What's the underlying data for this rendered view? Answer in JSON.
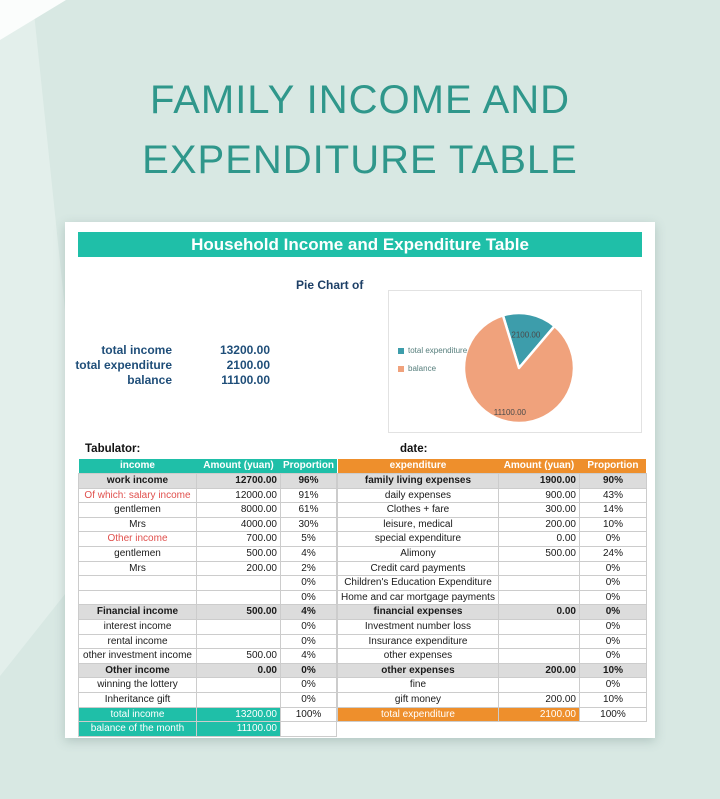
{
  "page_title": {
    "line1": "FAMILY INCOME AND",
    "line2": "EXPENDITURE TABLE"
  },
  "card": {
    "header": "Household Income and Expenditure Table",
    "chart_caption": "Pie Chart of",
    "tabulator_label": "Tabulator:",
    "date_label": "date:",
    "summary": {
      "rows": [
        {
          "label": "total income",
          "value": "13200.00"
        },
        {
          "label": "total expenditure",
          "value": "2100.00"
        },
        {
          "label": "balance",
          "value": "11100.00"
        }
      ]
    }
  },
  "chart_data": {
    "type": "pie",
    "title": "Pie Chart of",
    "legend_position": "left",
    "start_angle_deg": -17,
    "slices": [
      {
        "label": "total expenditure",
        "value": 2100,
        "data_label": "2100.00",
        "color": "#3d9dab",
        "label_r": 0.62
      },
      {
        "label": "balance",
        "value": 11100,
        "data_label": "11100.00",
        "color": "#f0a27c",
        "label_r": 0.82
      }
    ]
  },
  "tables": {
    "income": {
      "headers": [
        "income",
        "Amount (yuan)",
        "Proportion"
      ],
      "rows": [
        {
          "label": "work income",
          "amount": "12700.00",
          "prop": "96%",
          "style": "bold"
        },
        {
          "label": "Of which: salary income",
          "amount": "12000.00",
          "prop": "91%",
          "style": "red"
        },
        {
          "label": "gentlemen",
          "amount": "8000.00",
          "prop": "61%",
          "style": "normal"
        },
        {
          "label": "Mrs",
          "amount": "4000.00",
          "prop": "30%",
          "style": "normal"
        },
        {
          "label": "Other income",
          "amount": "700.00",
          "prop": "5%",
          "style": "red"
        },
        {
          "label": "gentlemen",
          "amount": "500.00",
          "prop": "4%",
          "style": "normal"
        },
        {
          "label": "Mrs",
          "amount": "200.00",
          "prop": "2%",
          "style": "normal"
        },
        {
          "label": "",
          "amount": "",
          "prop": "0%",
          "style": "normal"
        },
        {
          "label": "",
          "amount": "",
          "prop": "0%",
          "style": "normal"
        },
        {
          "label": "Financial income",
          "amount": "500.00",
          "prop": "4%",
          "style": "bold"
        },
        {
          "label": "interest income",
          "amount": "",
          "prop": "0%",
          "style": "normal"
        },
        {
          "label": "rental income",
          "amount": "",
          "prop": "0%",
          "style": "normal"
        },
        {
          "label": "other investment income",
          "amount": "500.00",
          "prop": "4%",
          "style": "normal"
        },
        {
          "label": "Other income",
          "amount": "0.00",
          "prop": "0%",
          "style": "bold"
        },
        {
          "label": "winning the lottery",
          "amount": "",
          "prop": "0%",
          "style": "normal"
        },
        {
          "label": "Inheritance gift",
          "amount": "",
          "prop": "0%",
          "style": "normal"
        },
        {
          "label": "total income",
          "amount": "13200.00",
          "prop": "100%",
          "style": "total"
        },
        {
          "label": "balance of the month",
          "amount": "11100.00",
          "prop": "",
          "style": "total"
        }
      ]
    },
    "expenditure": {
      "headers": [
        "expenditure",
        "Amount (yuan)",
        "Proportion"
      ],
      "rows": [
        {
          "label": "family living expenses",
          "amount": "1900.00",
          "prop": "90%",
          "style": "bold"
        },
        {
          "label": "daily expenses",
          "amount": "900.00",
          "prop": "43%",
          "style": "normal"
        },
        {
          "label": "Clothes + fare",
          "amount": "300.00",
          "prop": "14%",
          "style": "normal"
        },
        {
          "label": "leisure, medical",
          "amount": "200.00",
          "prop": "10%",
          "style": "normal"
        },
        {
          "label": "special expenditure",
          "amount": "0.00",
          "prop": "0%",
          "style": "normal"
        },
        {
          "label": "Alimony",
          "amount": "500.00",
          "prop": "24%",
          "style": "normal"
        },
        {
          "label": "Credit card payments",
          "amount": "",
          "prop": "0%",
          "style": "normal"
        },
        {
          "label": "Children's Education Expenditure",
          "amount": "",
          "prop": "0%",
          "style": "normal"
        },
        {
          "label": "Home and car mortgage payments",
          "amount": "",
          "prop": "0%",
          "style": "normal"
        },
        {
          "label": "financial expenses",
          "amount": "0.00",
          "prop": "0%",
          "style": "bold"
        },
        {
          "label": "Investment number loss",
          "amount": "",
          "prop": "0%",
          "style": "normal"
        },
        {
          "label": "Insurance expenditure",
          "amount": "",
          "prop": "0%",
          "style": "normal"
        },
        {
          "label": "other expenses",
          "amount": "",
          "prop": "0%",
          "style": "normal"
        },
        {
          "label": "other expenses",
          "amount": "200.00",
          "prop": "10%",
          "style": "bold"
        },
        {
          "label": "fine",
          "amount": "",
          "prop": "0%",
          "style": "normal"
        },
        {
          "label": "gift money",
          "amount": "200.00",
          "prop": "10%",
          "style": "normal"
        },
        {
          "label": "total expenditure",
          "amount": "2100.00",
          "prop": "100%",
          "style": "total"
        }
      ]
    }
  },
  "colors": {
    "accent_teal": "#1fbfa8",
    "accent_orange": "#ee8f2c",
    "title_teal": "#2f978b",
    "summary_navy": "#1f4e79",
    "red_text": "#e0504d",
    "pie_teal": "#3d9dab",
    "pie_salmon": "#f0a27c",
    "bold_row_gray": "#dcdcdc",
    "page_bg": "#d8e8e3"
  }
}
